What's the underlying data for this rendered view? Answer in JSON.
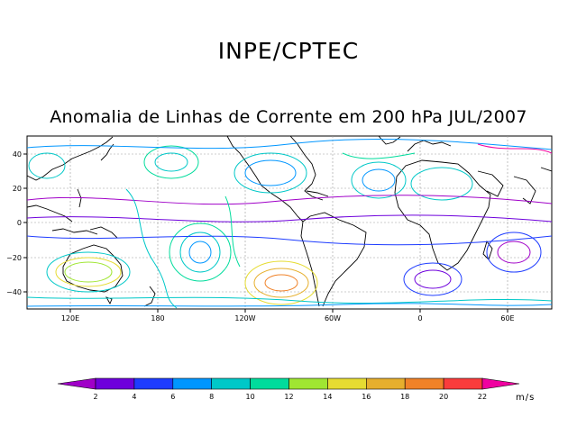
{
  "header": {
    "org": "INPE/CPTEC",
    "title": "Anomalia de Linhas de Corrente em 200 hPa JUL/2007"
  },
  "map": {
    "lat_ticks": [
      "40",
      "20",
      "0",
      "−20",
      "−40"
    ],
    "lon_ticks": [
      "120E",
      "180",
      "120W",
      "60W",
      "0",
      "60E"
    ]
  },
  "colorbar": {
    "units": "m/s",
    "labels": [
      "2",
      "4",
      "6",
      "8",
      "10",
      "12",
      "14",
      "16",
      "18",
      "20",
      "22"
    ],
    "colors": [
      "#a000c8",
      "#6e00dc",
      "#1e3cff",
      "#0096ff",
      "#00c8c8",
      "#00dc9c",
      "#a0e632",
      "#e6dc32",
      "#e6af2d",
      "#f08228",
      "#fa3c3c",
      "#f000a0"
    ]
  }
}
